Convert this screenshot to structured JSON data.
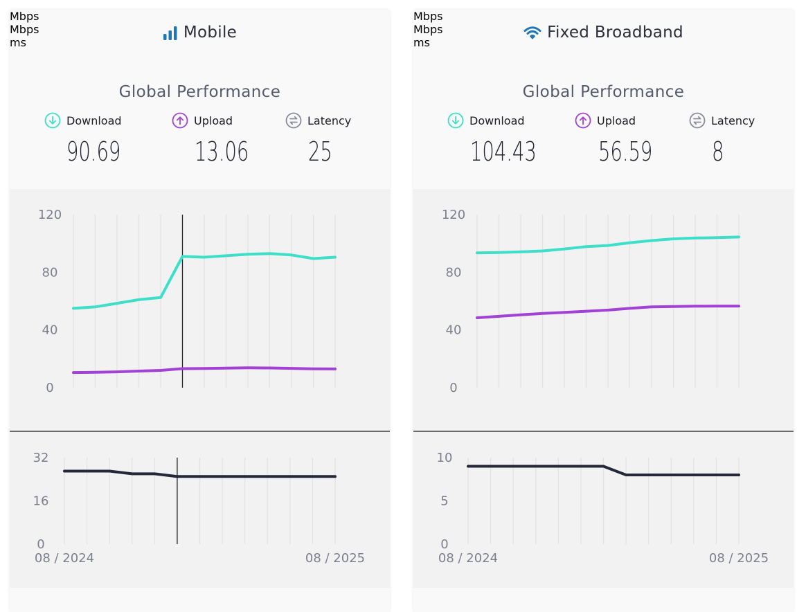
{
  "colors": {
    "download": "#3ddfc9",
    "upload": "#a142d4",
    "latency": "#252838",
    "title_icon": "#1f78b4"
  },
  "mobile": {
    "title": "Mobile",
    "icon": "signal-bars-icon",
    "perf_title": "Global Performance",
    "metrics": {
      "download": {
        "label": "Download",
        "value": "90.69",
        "unit": "Mbps"
      },
      "upload": {
        "label": "Upload",
        "value": "13.06",
        "unit": "Mbps"
      },
      "latency": {
        "label": "Latency",
        "value": "25",
        "unit": "ms"
      }
    }
  },
  "fixed": {
    "title": "Fixed Broadband",
    "icon": "wifi-icon",
    "perf_title": "Global Performance",
    "metrics": {
      "download": {
        "label": "Download",
        "value": "104.43",
        "unit": "Mbps"
      },
      "upload": {
        "label": "Upload",
        "value": "56.59",
        "unit": "Mbps"
      },
      "latency": {
        "label": "Latency",
        "value": "8",
        "unit": "ms"
      }
    }
  },
  "chart_data": [
    {
      "type": "line",
      "chart": "mobile-speed",
      "x_start_label": "08 / 2024",
      "x_end_label": "08 / 2025",
      "ylim": [
        0,
        120
      ],
      "yticks": [
        0,
        40,
        80,
        120
      ],
      "grid": "vertical",
      "hover_index": 5,
      "series": [
        {
          "key": "download",
          "values": [
            55,
            56,
            58.5,
            61,
            62.5,
            91,
            90.5,
            91.5,
            92.5,
            93,
            92,
            89.5,
            90.5
          ]
        },
        {
          "key": "upload",
          "values": [
            10.5,
            10.7,
            11,
            11.5,
            12,
            13.2,
            13.3,
            13.6,
            13.8,
            13.7,
            13.4,
            13.1,
            13.0
          ]
        }
      ]
    },
    {
      "type": "line",
      "chart": "mobile-latency",
      "x_start_label": "08 / 2024",
      "x_end_label": "08 / 2025",
      "ylim": [
        0,
        32
      ],
      "yticks": [
        0,
        16,
        32
      ],
      "grid": "vertical",
      "hover_index": 5,
      "series": [
        {
          "key": "latency",
          "values": [
            27,
            27,
            27,
            26,
            26,
            25,
            25,
            25,
            25,
            25,
            25,
            25,
            25
          ]
        }
      ]
    },
    {
      "type": "line",
      "chart": "fixed-speed",
      "x_start_label": "08 / 2024",
      "x_end_label": "08 / 2025",
      "ylim": [
        0,
        120
      ],
      "yticks": [
        0,
        40,
        80,
        120
      ],
      "grid": "vertical",
      "series": [
        {
          "key": "download",
          "values": [
            93.5,
            93.7,
            94.2,
            94.8,
            96.2,
            97.8,
            98.6,
            100.5,
            102,
            103.2,
            103.8,
            104,
            104.43
          ]
        },
        {
          "key": "upload",
          "values": [
            48.5,
            49.5,
            50.5,
            51.5,
            52.2,
            53,
            53.8,
            55,
            56,
            56.3,
            56.5,
            56.6,
            56.59
          ]
        }
      ]
    },
    {
      "type": "line",
      "chart": "fixed-latency",
      "x_start_label": "08 / 2024",
      "x_end_label": "08 / 2025",
      "ylim": [
        0,
        10
      ],
      "yticks": [
        0,
        5,
        10
      ],
      "grid": "vertical",
      "series": [
        {
          "key": "latency",
          "values": [
            9,
            9,
            9,
            9,
            9,
            9,
            9,
            8,
            8,
            8,
            8,
            8,
            8
          ]
        }
      ]
    }
  ]
}
